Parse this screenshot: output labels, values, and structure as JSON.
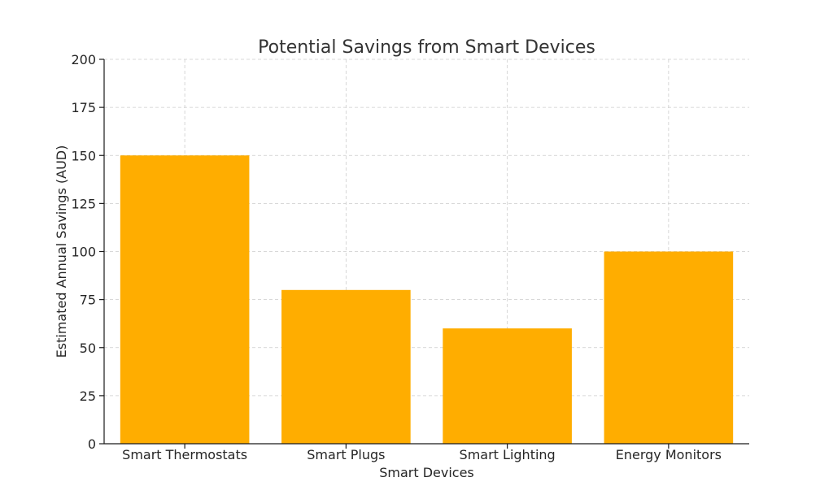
{
  "chart_data": {
    "type": "bar",
    "title": "Potential Savings from Smart Devices",
    "xlabel": "Smart Devices",
    "ylabel": "Estimated Annual Savings (AUD)",
    "categories": [
      "Smart Thermostats",
      "Smart Plugs",
      "Smart Lighting",
      "Energy Monitors"
    ],
    "values": [
      150,
      80,
      60,
      100
    ],
    "ylim": [
      0,
      200
    ],
    "yticks": [
      0,
      25,
      50,
      75,
      100,
      125,
      150,
      175,
      200
    ],
    "grid": true,
    "bar_color": "#ffad00",
    "legend": "none"
  }
}
